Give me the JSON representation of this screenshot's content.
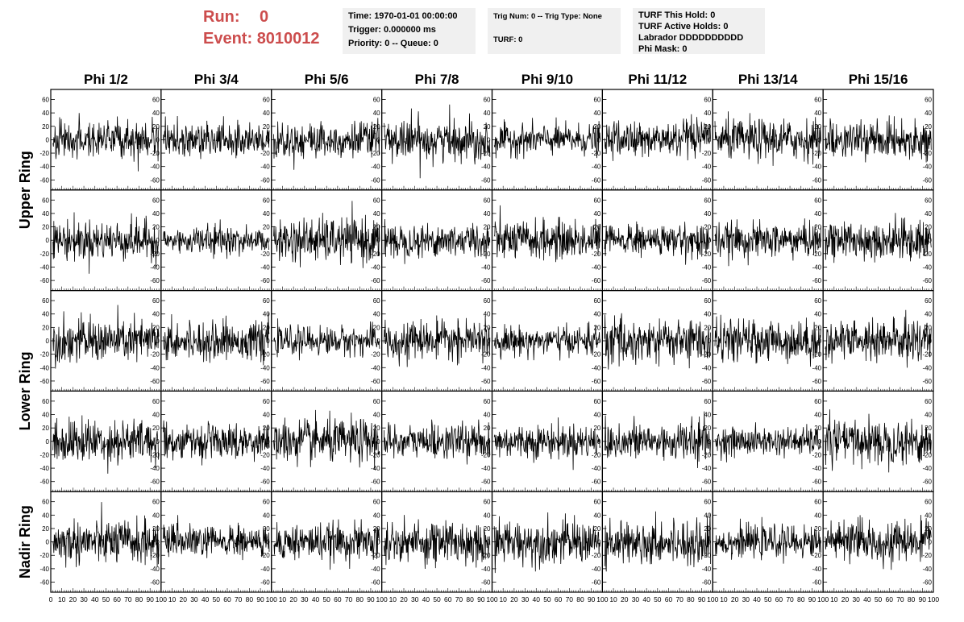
{
  "header": {
    "run_label": "Run:",
    "run_value": "0",
    "event_label": "Event:",
    "event_value": "8010012"
  },
  "info_time": {
    "time": "Time: 1970-01-01 00:00:00",
    "trigger": "Trigger: 0.000000 ms",
    "priority": "Priority: 0 -- Queue: 0"
  },
  "info_trig": {
    "trig": "Trig Num: 0 -- Trig Type: None",
    "turf": "TURF: 0"
  },
  "info_turf": {
    "this_hold": "TURF This Hold: 0",
    "active_holds": "TURF Active Holds: 0",
    "labrador": "Labrador DDDDDDDDDD",
    "phi_mask": "Phi Mask: 0"
  },
  "chart_data": {
    "type": "line",
    "columns": [
      "Phi 1/2",
      "Phi 3/4",
      "Phi 5/6",
      "Phi 7/8",
      "Phi 9/10",
      "Phi 11/12",
      "Phi 13/14",
      "Phi 15/16"
    ],
    "ring_labels": [
      "Upper Ring",
      "Lower Ring",
      "Nadir Ring"
    ],
    "rows_per_ring": [
      2,
      2,
      1
    ],
    "xlim": [
      0,
      100
    ],
    "ylim": [
      -75,
      75
    ],
    "y_ticks": [
      -60,
      -40,
      -20,
      0,
      20,
      40,
      60
    ],
    "x_ticks": [
      0,
      10,
      20,
      30,
      40,
      50,
      60,
      70,
      80,
      90,
      100
    ],
    "samples_per_trace": 256,
    "noise_amplitude_mv": 13,
    "line_color": "#000000"
  }
}
